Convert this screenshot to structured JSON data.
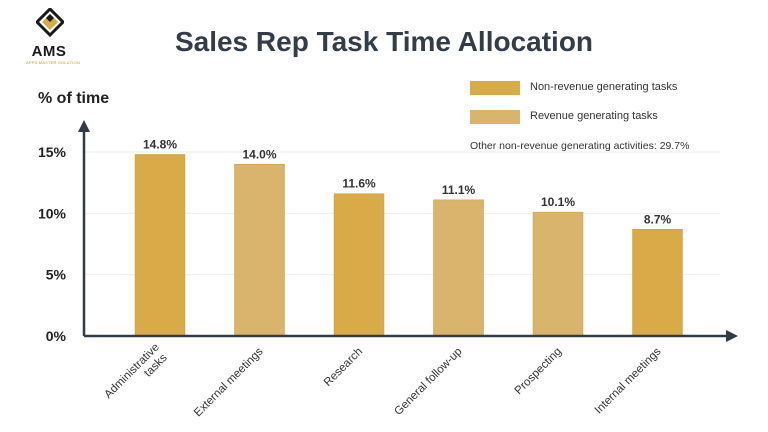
{
  "logo": {
    "text": "AMS",
    "subtext": "APPS MASTER SOLUTION",
    "icon": "diamond-logo-icon"
  },
  "colors": {
    "non_revenue": "#d9ab48",
    "revenue": "#d9b46c",
    "axis": "#2f3b47",
    "grid": "#eeeeee",
    "title": "#333d47"
  },
  "chart_data": {
    "type": "bar",
    "title": "Sales Rep Task Time Allocation",
    "ylabel": "% of time",
    "xlabel": "",
    "ylim": [
      0,
      15
    ],
    "yticks": [
      0,
      5,
      10,
      15
    ],
    "ytick_labels": [
      "0%",
      "5%",
      "10%",
      "15%"
    ],
    "grid": true,
    "legend_position": "top-right",
    "categories": [
      [
        "Administrative",
        "tasks"
      ],
      [
        "External meetings"
      ],
      [
        "Research"
      ],
      [
        "General follow-up"
      ],
      [
        "Prospecting"
      ],
      [
        "Internal meetings"
      ]
    ],
    "values": [
      14.8,
      14.0,
      11.6,
      11.1,
      10.1,
      8.7
    ],
    "value_labels": [
      "14.8%",
      "14.0%",
      "11.6%",
      "11.1%",
      "10.1%",
      "8.7%"
    ],
    "series_type": [
      "non_revenue",
      "revenue",
      "non_revenue",
      "revenue",
      "revenue",
      "non_revenue"
    ],
    "legend": [
      {
        "key": "non_revenue",
        "label": "Non-revenue generating tasks"
      },
      {
        "key": "revenue",
        "label": "Revenue generating tasks"
      }
    ],
    "annotation": "Other non-revenue generating activities: 29.7%"
  }
}
